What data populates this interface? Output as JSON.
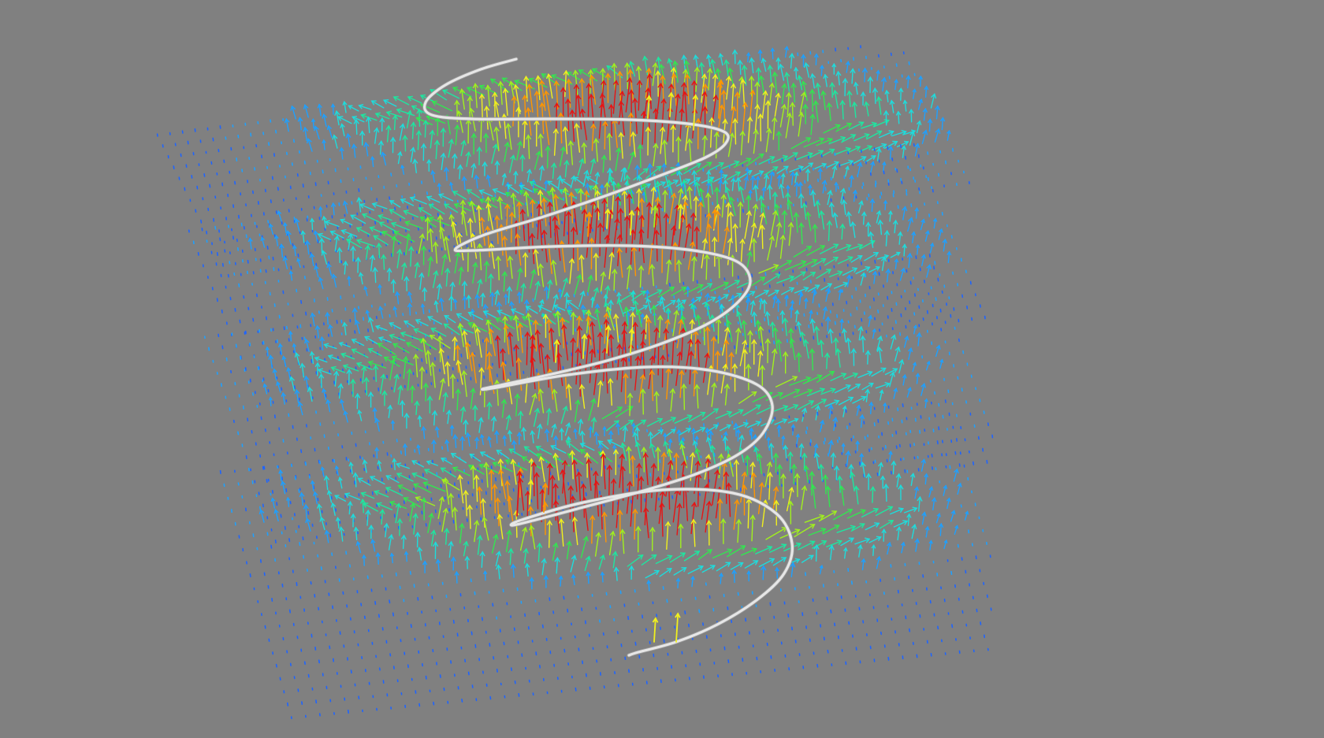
{
  "scene": {
    "background_color": "#808080",
    "coil_color": "#e6e6e6",
    "coil_turns": 4.5,
    "vector_layers": 4,
    "colormap": [
      "#1e64ff",
      "#1ea0ff",
      "#1edcdc",
      "#1ee6a0",
      "#32e650",
      "#a0f01e",
      "#f0f01e",
      "#ff9600",
      "#e61414"
    ],
    "colormap_name": "jet",
    "arrow_glyph": "arrow-icon"
  }
}
